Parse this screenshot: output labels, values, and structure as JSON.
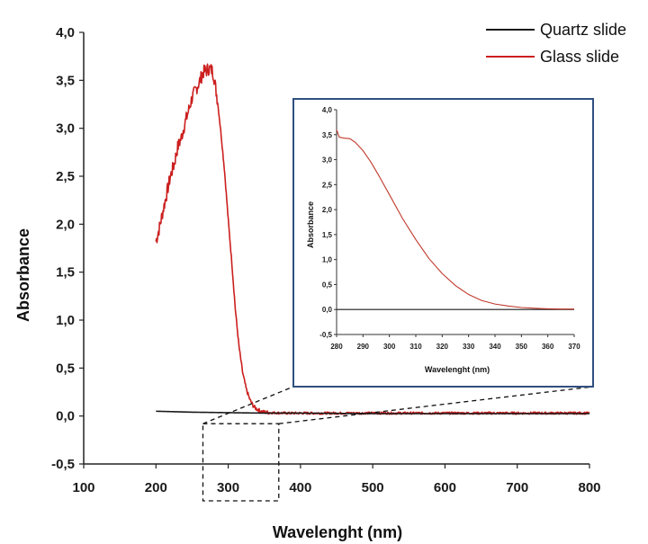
{
  "chart_data": [
    {
      "type": "line",
      "title": "",
      "xlabel": "Wavelenght (nm)",
      "ylabel": "Absorbance",
      "xlim": [
        100,
        800
      ],
      "ylim": [
        -0.5,
        4.0
      ],
      "x_ticks": [
        100,
        200,
        300,
        400,
        500,
        600,
        700,
        800
      ],
      "y_ticks": [
        -0.5,
        0.0,
        0.5,
        1.0,
        1.5,
        2.0,
        2.5,
        3.0,
        3.5,
        4.0
      ],
      "x_tick_labels": [
        "100",
        "200",
        "300",
        "400",
        "500",
        "600",
        "700",
        "800"
      ],
      "y_tick_labels": [
        "-0,5",
        "0,0",
        "0,5",
        "1,0",
        "1,5",
        "2,0",
        "2,5",
        "3,0",
        "3,5",
        "4,0"
      ],
      "grid": false,
      "legend_position": "top-right",
      "zoom_region": {
        "x": [
          265,
          370
        ],
        "y": [
          -0.5,
          -0.08
        ]
      },
      "series": [
        {
          "name": "Quartz slide",
          "color": "#1a1a1a",
          "x": [
            200,
            250,
            300,
            350,
            400,
            500,
            600,
            700,
            800
          ],
          "y": [
            0.05,
            0.04,
            0.035,
            0.03,
            0.03,
            0.025,
            0.025,
            0.025,
            0.025
          ]
        },
        {
          "name": "Glass slide",
          "color": "#cc1f1f",
          "noisy": true,
          "x": [
            200,
            205,
            210,
            215,
            220,
            225,
            230,
            235,
            240,
            245,
            250,
            255,
            260,
            262,
            265,
            268,
            270,
            272,
            275,
            278,
            280,
            282,
            285,
            290,
            295,
            300,
            305,
            310,
            315,
            320,
            325,
            330,
            335,
            340,
            345,
            350,
            360,
            380,
            400,
            450,
            500,
            600,
            700,
            800
          ],
          "y": [
            1.82,
            1.97,
            2.15,
            2.32,
            2.5,
            2.62,
            2.8,
            2.9,
            3.05,
            3.18,
            3.32,
            3.4,
            3.48,
            3.52,
            3.58,
            3.6,
            3.6,
            3.62,
            3.62,
            3.6,
            3.55,
            3.45,
            3.3,
            2.95,
            2.55,
            2.05,
            1.6,
            1.1,
            0.72,
            0.45,
            0.28,
            0.17,
            0.1,
            0.07,
            0.05,
            0.04,
            0.035,
            0.03,
            0.03,
            0.03,
            0.03,
            0.03,
            0.03,
            0.03
          ]
        }
      ]
    },
    {
      "type": "line",
      "title": "",
      "xlabel": "Wavelenght (nm)",
      "ylabel": "Absorbance",
      "xlim": [
        280,
        370
      ],
      "ylim": [
        -0.5,
        4.0
      ],
      "x_ticks": [
        280,
        290,
        300,
        310,
        320,
        330,
        340,
        350,
        360,
        370
      ],
      "y_ticks": [
        -0.5,
        0.0,
        0.5,
        1.0,
        1.5,
        2.0,
        2.5,
        3.0,
        3.5,
        4.0
      ],
      "x_tick_labels": [
        "280",
        "290",
        "300",
        "310",
        "320",
        "330",
        "340",
        "350",
        "360",
        "370"
      ],
      "y_tick_labels": [
        "-0,5",
        "0,0",
        "0,5",
        "1,0",
        "1,5",
        "2,0",
        "2,5",
        "3,0",
        "3,5",
        "4,0"
      ],
      "grid": false,
      "legend_position": "none",
      "series": [
        {
          "name": "Quartz slide",
          "color": "#1a1a1a",
          "x": [
            280,
            370
          ],
          "y": [
            0.0,
            0.0
          ]
        },
        {
          "name": "Glass slide",
          "color": "#c0392b",
          "x": [
            280,
            281,
            283,
            285,
            287,
            290,
            293,
            296,
            300,
            305,
            310,
            315,
            320,
            325,
            330,
            335,
            340,
            345,
            350,
            355,
            360,
            365,
            370
          ],
          "y": [
            3.6,
            3.45,
            3.43,
            3.42,
            3.35,
            3.18,
            2.95,
            2.68,
            2.3,
            1.82,
            1.4,
            1.02,
            0.72,
            0.48,
            0.3,
            0.18,
            0.11,
            0.07,
            0.04,
            0.025,
            0.015,
            0.01,
            0.01
          ]
        }
      ]
    }
  ]
}
